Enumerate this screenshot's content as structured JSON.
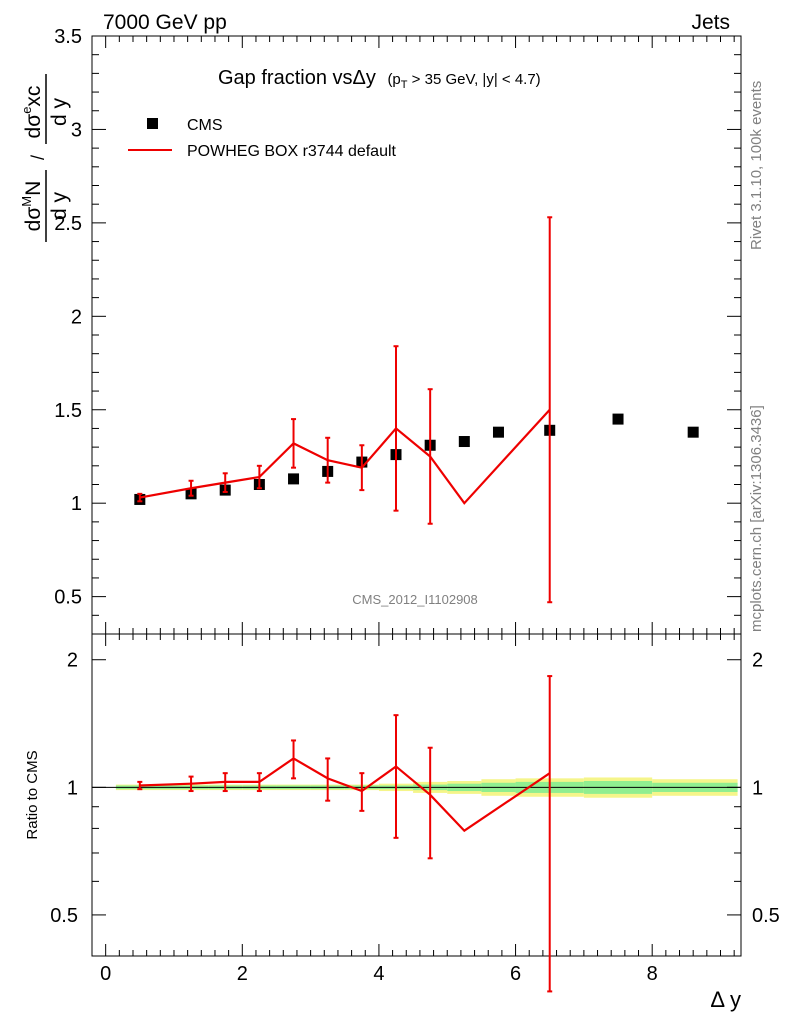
{
  "header": {
    "left": "7000 GeV pp",
    "right": "Jets"
  },
  "side_labels": {
    "rivet": "Rivet 3.1.10,  100k events",
    "mcplots": "mcplots.cern.ch [arXiv:1306.3436]"
  },
  "chart_data": [
    {
      "type": "scatter",
      "title": "Gap fraction vsΔy",
      "subtitle_parts": {
        "open": "(p",
        "sub": "T",
        "rest": " > 35 GeV, |y| < 4.7)"
      },
      "watermark": "CMS_2012_I1102908",
      "ylabel_parts": {
        "num1": "dσ",
        "sup1": "M",
        "num1b": "N",
        "den": "d y",
        "slash": "/",
        "num2": "dσ",
        "sup2": "e",
        "num2b": "xc"
      },
      "xlabel": "Δ y",
      "xlim": [
        -0.2,
        9.3
      ],
      "ylim": [
        0.3,
        3.5
      ],
      "x_ticks": [
        "0",
        "2",
        "4",
        "6",
        "8"
      ],
      "y_ticks": [
        "0.5",
        "1",
        "1.5",
        "2",
        "2.5",
        "3",
        "3.5"
      ],
      "legend": {
        "placement": "top-left",
        "entries": [
          "CMS",
          "POWHEG BOX r3744 default"
        ]
      },
      "series": [
        {
          "name": "CMS",
          "style": "markers",
          "color": "#000000",
          "x": [
            0.5,
            1.25,
            1.75,
            2.25,
            2.75,
            3.25,
            3.75,
            4.25,
            4.75,
            5.25,
            5.75,
            6.5,
            7.5,
            8.6
          ],
          "y": [
            1.02,
            1.05,
            1.07,
            1.1,
            1.13,
            1.17,
            1.22,
            1.26,
            1.31,
            1.33,
            1.38,
            1.39,
            1.45,
            1.38
          ]
        },
        {
          "name": "POWHEG BOX r3744 default",
          "style": "line",
          "color": "#ee0000",
          "x": [
            0.5,
            1.25,
            1.75,
            2.25,
            2.75,
            3.25,
            3.75,
            4.25,
            4.75,
            5.25,
            6.5
          ],
          "y": [
            1.03,
            1.08,
            1.11,
            1.14,
            1.32,
            1.23,
            1.19,
            1.4,
            1.25,
            1.0,
            1.5
          ],
          "err": [
            0.02,
            0.04,
            0.05,
            0.06,
            0.13,
            0.12,
            0.12,
            0.44,
            0.36,
            0.0,
            1.03
          ]
        }
      ]
    },
    {
      "type": "line",
      "ylabel": "Ratio to CMS",
      "ylim": [
        0.4,
        2.3
      ],
      "y_ticks": [
        "0.5",
        "1",
        "2"
      ],
      "y_ticks_right": [
        "0.5",
        "1",
        "2"
      ],
      "reference": 1.0,
      "band": {
        "x_edges": [
          0.15,
          1.0,
          1.5,
          2.0,
          2.5,
          3.0,
          3.5,
          4.0,
          4.5,
          5.0,
          5.5,
          6.0,
          7.0,
          8.0,
          9.25
        ],
        "inner": [
          0.01,
          0.01,
          0.01,
          0.01,
          0.01,
          0.01,
          0.01,
          0.01,
          0.015,
          0.02,
          0.025,
          0.03,
          0.035,
          0.025
        ],
        "outer": [
          0.015,
          0.015,
          0.015,
          0.015,
          0.015,
          0.015,
          0.015,
          0.02,
          0.03,
          0.035,
          0.045,
          0.05,
          0.055,
          0.045
        ]
      },
      "series": [
        {
          "name": "POWHEG BOX r3744 default",
          "color": "#ee0000",
          "x": [
            0.5,
            1.25,
            1.75,
            2.25,
            2.75,
            3.25,
            3.75,
            4.25,
            4.75,
            5.25,
            6.5
          ],
          "y": [
            1.01,
            1.02,
            1.03,
            1.03,
            1.17,
            1.05,
            0.98,
            1.12,
            0.96,
            0.79,
            1.08
          ],
          "err": [
            0.02,
            0.04,
            0.05,
            0.05,
            0.12,
            0.12,
            0.1,
            0.36,
            0.28,
            0.0,
            0.75
          ]
        }
      ]
    }
  ]
}
